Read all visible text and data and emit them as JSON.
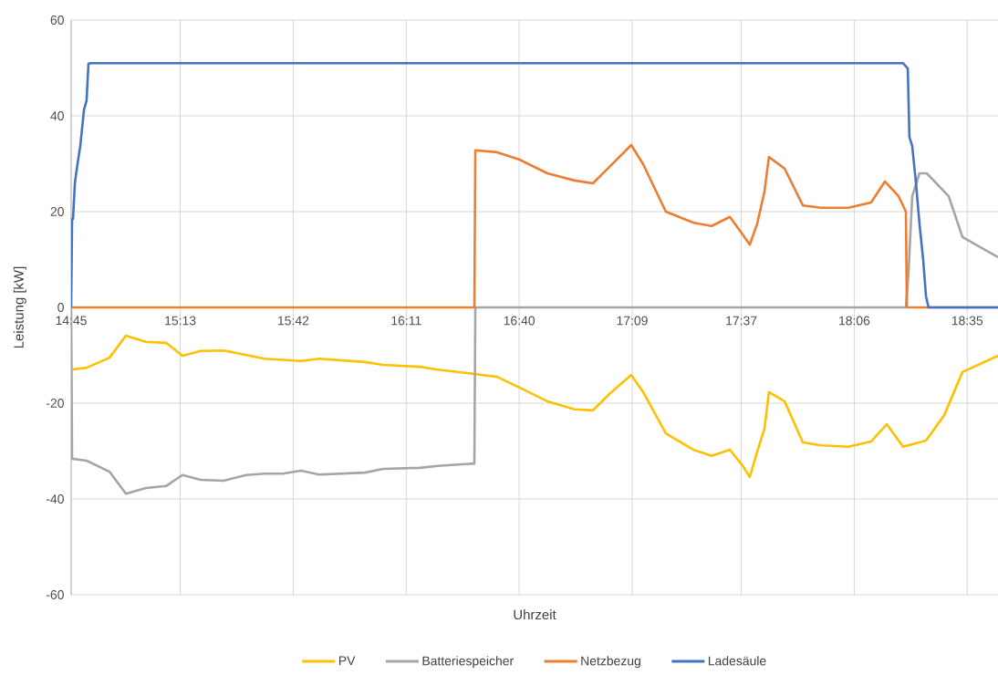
{
  "chart_data": {
    "type": "line",
    "xlabel": "Uhrzeit",
    "ylabel": "Leistung [kW]",
    "xlim": [
      14.75,
      18.715
    ],
    "ylim": [
      -60,
      60
    ],
    "xticks": [
      {
        "value": 14.75,
        "label": "14:45"
      },
      {
        "value": 15.2167,
        "label": "15:13"
      },
      {
        "value": 15.7,
        "label": "15:42"
      },
      {
        "value": 16.1833,
        "label": "16:11"
      },
      {
        "value": 16.6667,
        "label": "16:40"
      },
      {
        "value": 17.15,
        "label": "17:09"
      },
      {
        "value": 17.6167,
        "label": "17:37"
      },
      {
        "value": 18.1,
        "label": "18:06"
      },
      {
        "value": 18.5833,
        "label": "18:35"
      }
    ],
    "yticks": [
      -60,
      -40,
      -20,
      0,
      20,
      40,
      60
    ],
    "grid": true,
    "legend": "bottom",
    "marker": "none",
    "line_style": "solid",
    "series": [
      {
        "name": "PV",
        "color": "#ffc000",
        "x": [
          14.75,
          14.816,
          14.914,
          14.984,
          15.07,
          15.156,
          15.226,
          15.304,
          15.402,
          15.577,
          15.733,
          15.811,
          16.007,
          16.085,
          16.241,
          16.319,
          16.475,
          16.572,
          16.67,
          16.787,
          16.904,
          16.982,
          17.052,
          17.146,
          17.197,
          17.294,
          17.411,
          17.49,
          17.568,
          17.626,
          17.653,
          17.685,
          17.716,
          17.735,
          17.802,
          17.88,
          17.958,
          18.075,
          18.172,
          18.239,
          18.309,
          18.407,
          18.485,
          18.563,
          18.715
        ],
        "values": [
          -13.0,
          -12.6,
          -10.5,
          -5.9,
          -7.2,
          -7.4,
          -10.1,
          -9.1,
          -9.0,
          -10.7,
          -11.2,
          -10.7,
          -11.4,
          -12.0,
          -12.4,
          -13.0,
          -13.9,
          -14.5,
          -16.8,
          -19.6,
          -21.3,
          -21.5,
          -18.1,
          -14.1,
          -17.7,
          -26.3,
          -29.7,
          -31.0,
          -29.7,
          -33.3,
          -35.4,
          -30.1,
          -25.3,
          -17.7,
          -19.6,
          -28.2,
          -28.8,
          -29.1,
          -28.0,
          -24.4,
          -29.1,
          -27.8,
          -22.5,
          -13.5,
          -10.1
        ]
      },
      {
        "name": "Batteriespeicher",
        "color": "#a5a5a5",
        "x": [
          14.75,
          14.754,
          14.816,
          14.914,
          14.984,
          15.07,
          15.156,
          15.226,
          15.304,
          15.402,
          15.499,
          15.577,
          15.655,
          15.733,
          15.811,
          16.007,
          16.085,
          16.241,
          16.319,
          16.475,
          16.479,
          18.321,
          18.332,
          18.348,
          18.379,
          18.41,
          18.504,
          18.563,
          18.715
        ],
        "values": [
          0,
          -31.6,
          -32.0,
          -34.3,
          -38.9,
          -37.7,
          -37.3,
          -35.0,
          -36.0,
          -36.2,
          -35.0,
          -34.7,
          -34.7,
          -34.1,
          -34.9,
          -34.5,
          -33.7,
          -33.5,
          -33.1,
          -32.6,
          0,
          0,
          7.0,
          23.2,
          28.0,
          28.0,
          23.2,
          14.7,
          10.5
        ]
      },
      {
        "name": "Netzbezug",
        "color": "#ed7d31",
        "x": [
          14.75,
          16.475,
          16.479,
          16.572,
          16.666,
          16.787,
          16.904,
          16.982,
          17.052,
          17.146,
          17.197,
          17.294,
          17.411,
          17.49,
          17.568,
          17.626,
          17.653,
          17.685,
          17.716,
          17.735,
          17.802,
          17.88,
          17.958,
          18.075,
          18.172,
          18.231,
          18.29,
          18.321,
          18.325,
          18.715
        ],
        "values": [
          0,
          0,
          32.8,
          32.4,
          30.9,
          28.0,
          26.5,
          25.9,
          29.3,
          33.9,
          29.9,
          20.0,
          17.7,
          17.0,
          18.9,
          15.0,
          13.1,
          17.5,
          24.2,
          31.4,
          29.0,
          21.3,
          20.8,
          20.8,
          21.9,
          26.3,
          23.2,
          20.0,
          0,
          0
        ]
      },
      {
        "name": "Ladesäule",
        "color": "#4472c4",
        "x": [
          14.75,
          14.754,
          14.758,
          14.766,
          14.777,
          14.789,
          14.805,
          14.816,
          14.824,
          14.836,
          18.309,
          18.329,
          18.336,
          18.348,
          18.364,
          18.379,
          18.395,
          18.407,
          18.418,
          18.715
        ],
        "values": [
          0,
          18.5,
          18.5,
          26.0,
          29.9,
          33.7,
          41.3,
          43.2,
          50.9,
          51.0,
          51.0,
          49.9,
          35.6,
          33.7,
          26.0,
          17.5,
          9.9,
          2.3,
          0,
          0
        ]
      }
    ]
  }
}
